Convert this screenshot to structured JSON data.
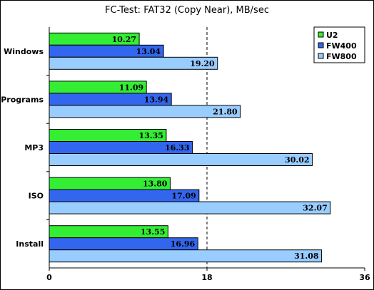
{
  "chart_data": {
    "type": "bar",
    "orientation": "horizontal",
    "title": "FC-Test: FAT32 (Copy Near), MB/sec",
    "categories": [
      "Windows",
      "Programs",
      "MP3",
      "ISO",
      "Install"
    ],
    "series": [
      {
        "name": "U2",
        "color": "#33ee33",
        "values": [
          10.27,
          11.09,
          13.35,
          13.8,
          13.55
        ]
      },
      {
        "name": "FW400",
        "color": "#3366ee",
        "values": [
          13.04,
          13.94,
          16.33,
          17.09,
          16.96
        ]
      },
      {
        "name": "FW800",
        "color": "#99ccff",
        "values": [
          19.2,
          21.8,
          30.02,
          32.07,
          31.08
        ]
      }
    ],
    "x_ticks": [
      "0",
      "18",
      "36"
    ],
    "xlim": [
      0,
      36
    ],
    "reference_line": 18,
    "legend_position": "top-right",
    "data_labels": true
  }
}
